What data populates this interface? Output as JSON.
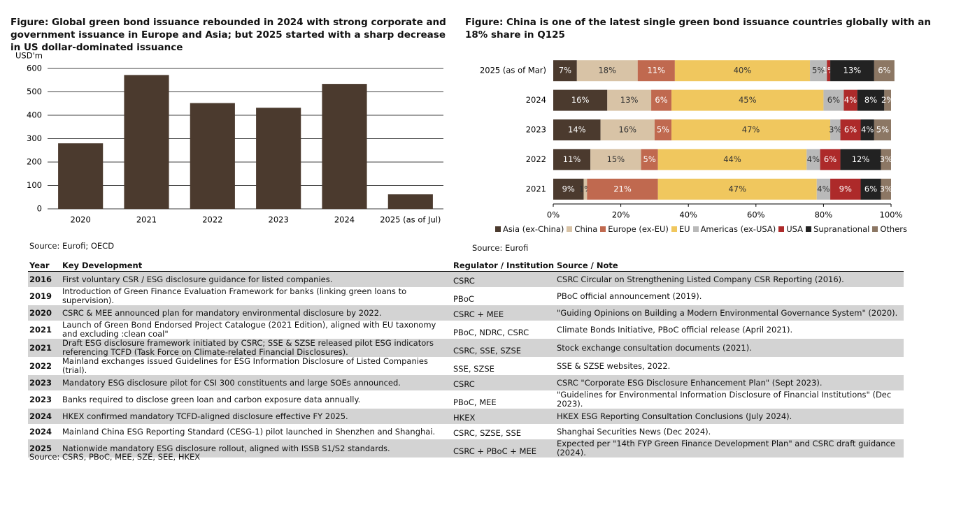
{
  "chart_data": [
    {
      "type": "bar",
      "title": "Figure: Global green bond issuance rebounded in 2024 with strong corporate and government issuance in Europe and Asia; but 2025 started with a sharp decrease in US dollar-dominated issuance",
      "ylabel": "USD'm",
      "categories": [
        "2020",
        "2021",
        "2022",
        "2023",
        "2024",
        "2025 (as of Jul)"
      ],
      "values": [
        280,
        572,
        452,
        432,
        534,
        62
      ],
      "color": "#4b3a2e",
      "ylim": [
        0,
        600
      ],
      "yticks": [
        0,
        100,
        200,
        300,
        400,
        500,
        600
      ],
      "grid": true,
      "source": "Source: Eurofi; OECD"
    },
    {
      "type": "stacked-barh",
      "title": "Figure: China is one of the latest single green bond issuance countries globally with an 18% share in Q125",
      "categories": [
        "2025 (as of Mar)",
        "2024",
        "2023",
        "2022",
        "2021"
      ],
      "series": [
        {
          "name": "Asia (ex-China)",
          "color": "#4b3a2e",
          "values": [
            7,
            16,
            14,
            11,
            9
          ],
          "value_labels": [
            "7%",
            "16%",
            "14%",
            "11%",
            "9%"
          ]
        },
        {
          "name": "China",
          "color": "#d8c3a6",
          "values": [
            18,
            13,
            16,
            15,
            1
          ],
          "value_labels": [
            "18%",
            "13%",
            "16%",
            "15%",
            "1%"
          ]
        },
        {
          "name": "Europe (ex-EU)",
          "color": "#c0694f",
          "values": [
            11,
            6,
            5,
            5,
            21
          ],
          "value_labels": [
            "11%",
            "6%",
            "5%",
            "5%",
            "21%"
          ]
        },
        {
          "name": "EU",
          "color": "#f0c75e",
          "values": [
            40,
            45,
            47,
            44,
            47
          ],
          "value_labels": [
            "40%",
            "45%",
            "47%",
            "44%",
            "47%"
          ]
        },
        {
          "name": "Americas (ex-USA)",
          "color": "#b9b9b9",
          "values": [
            5,
            6,
            3,
            4,
            4
          ],
          "value_labels": [
            "5%",
            "6%",
            "3%",
            "4%",
            "4%"
          ]
        },
        {
          "name": "USA",
          "color": "#ad2a2a",
          "values": [
            1,
            4,
            6,
            6,
            9
          ],
          "value_labels": [
            "1%",
            "4%",
            "6%",
            "6%",
            "9%"
          ]
        },
        {
          "name": "Supranational",
          "color": "#222222",
          "values": [
            13,
            8,
            4,
            12,
            6
          ],
          "value_labels": [
            "13%",
            "8%",
            "4%",
            "12%",
            "6%"
          ]
        },
        {
          "name": "Others",
          "color": "#8c7764",
          "values": [
            6,
            2,
            5,
            3,
            3
          ],
          "value_labels": [
            "6%",
            "2%",
            "5%",
            "3%",
            "3%"
          ]
        }
      ],
      "xlim": [
        0,
        100
      ],
      "xticks": [
        {
          "value": 0,
          "label": "0%"
        },
        {
          "value": 20,
          "label": "20%"
        },
        {
          "value": 40,
          "label": "40%"
        },
        {
          "value": 60,
          "label": "60%"
        },
        {
          "value": 80,
          "label": "80%"
        },
        {
          "value": 100,
          "label": "100%"
        }
      ],
      "legend": "bottom",
      "source": "Source: Eurofi"
    }
  ],
  "table": {
    "header": [
      "Year",
      "Key Development",
      "Regulator / Institution",
      "Source / Note"
    ],
    "rows": [
      [
        "2016",
        "First voluntary CSR / ESG disclosure guidance for listed companies.",
        "CSRC",
        "CSRC Circular on Strengthening Listed Company CSR Reporting (2016)."
      ],
      [
        "2019",
        "Introduction of Green Finance Evaluation Framework for banks (linking green loans to supervision).",
        "PBoC",
        "PBoC official announcement (2019)."
      ],
      [
        "2020",
        "CSRC & MEE announced plan for mandatory environmental disclosure by 2022.",
        "CSRC + MEE",
        "\"Guiding Opinions on Building a Modern Environmental Governance System\" (2020)."
      ],
      [
        "2021",
        "Launch of Green Bond Endorsed Project Catalogue (2021 Edition), aligned with EU taxonomy and excluding :clean coal\"",
        "PBoC, NDRC, CSRC",
        "Climate Bonds Initiative, PBoC official release (April 2021)."
      ],
      [
        "2021",
        "Draft ESG disclosure framework initiated by CSRC; SSE & SZSE released pilot ESG indicators referencing TCFD (Task Force on Climate-related Financial Disclosures).",
        "CSRC, SSE, SZSE",
        "Stock exchange consultation documents (2021)."
      ],
      [
        "2022",
        "Mainland exchanges issued Guidelines for ESG Information Disclosure of Listed Companies (trial).",
        "SSE, SZSE",
        "SSE & SZSE websites, 2022."
      ],
      [
        "2023",
        "Mandatory ESG disclosure pilot for CSI 300 constituents and large SOEs announced.",
        "CSRC",
        "CSRC \"Corporate ESG Disclosure Enhancement Plan\" (Sept 2023)."
      ],
      [
        "2023",
        "Banks required to disclose green loan and carbon exposure data annually.",
        "PBoC, MEE",
        "\"Guidelines for Environmental Information Disclosure of Financial Institutions\" (Dec 2023)."
      ],
      [
        "2024",
        "HKEX confirmed mandatory TCFD-aligned disclosure effective FY 2025.",
        "HKEX",
        "HKEX ESG Reporting Consultation Conclusions (July 2024)."
      ],
      [
        "2024",
        "Mainland China ESG Reporting Standard (CESG-1) pilot launched in Shenzhen and Shanghai.",
        "CSRC, SZSE, SSE",
        "Shanghai Securities News (Dec 2024)."
      ],
      [
        "2025",
        "Nationwide mandatory ESG disclosure rollout, aligned with ISSB S1/S2 standards.",
        "CSRC + PBoC + MEE",
        "Expected per \"14th FYP Green Finance Development Plan\" and CSRC draft guidance (2024)."
      ]
    ],
    "source": "Source: CSRS, PBoC, MEE, SZE, SEE, HKEX"
  }
}
